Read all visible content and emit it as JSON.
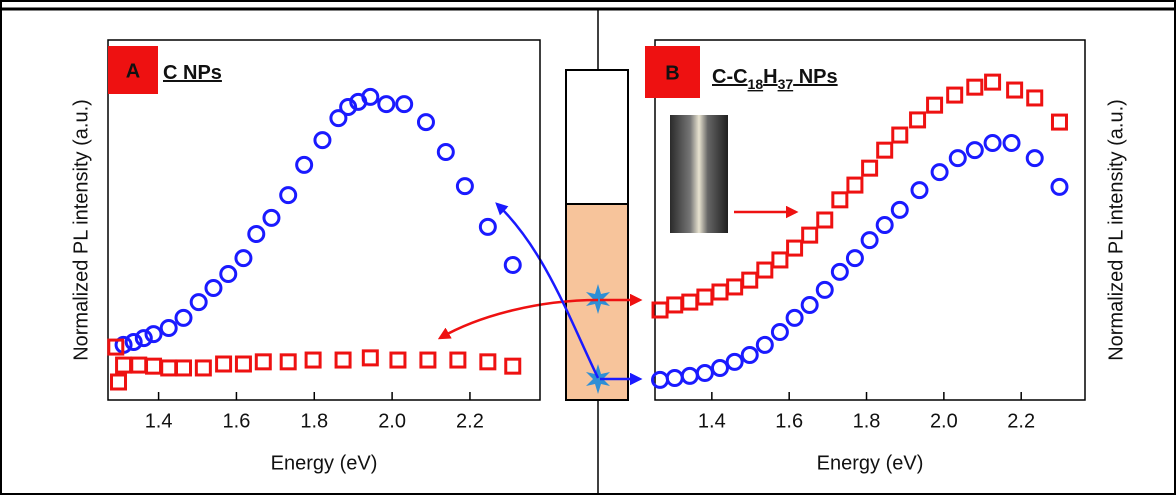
{
  "chart_data": [
    {
      "type": "scatter",
      "panel_label": "A",
      "title": "C NPs",
      "x_label": "Energy (eV)",
      "y_label": "Normalized PL intensity (a.u.)",
      "xlim": [
        1.27,
        2.38
      ],
      "ylim": [
        0,
        1
      ],
      "xticks": [
        1.4,
        1.6,
        1.8,
        {
          "value": 2,
          "label": "2.0"
        },
        2.2
      ],
      "series": [
        {
          "marker": "circle",
          "color": "#1a1aff",
          "x": [
            1.31,
            1.336,
            1.362,
            1.387,
            1.426,
            1.464,
            1.503,
            1.541,
            1.579,
            1.618,
            1.651,
            1.69,
            1.733,
            1.774,
            1.821,
            1.862,
            1.887,
            1.913,
            1.944,
            1.985,
            2.031,
            2.087,
            2.138,
            2.187,
            2.246,
            2.31
          ],
          "values": [
            0.153,
            0.161,
            0.172,
            0.183,
            0.2,
            0.228,
            0.272,
            0.311,
            0.35,
            0.394,
            0.461,
            0.506,
            0.569,
            0.653,
            0.722,
            0.783,
            0.814,
            0.828,
            0.842,
            0.822,
            0.822,
            0.772,
            0.689,
            0.594,
            0.481,
            0.375
          ]
        },
        {
          "marker": "square",
          "color": "#ee1111",
          "x": [
            1.29,
            1.297,
            1.31,
            1.349,
            1.387,
            1.426,
            1.464,
            1.515,
            1.567,
            1.618,
            1.669,
            1.733,
            1.797,
            1.874,
            1.944,
            2.015,
            2.092,
            2.169,
            2.246,
            2.31
          ],
          "values": [
            0.147,
            0.05,
            0.097,
            0.097,
            0.094,
            0.089,
            0.089,
            0.089,
            0.1,
            0.1,
            0.106,
            0.106,
            0.111,
            0.111,
            0.117,
            0.111,
            0.111,
            0.111,
            0.106,
            0.094
          ]
        }
      ]
    },
    {
      "type": "scatter",
      "panel_label": "B",
      "title": "C-C18H37 NPs",
      "x_label": "Energy (eV)",
      "y_label": "Normalized PL intensity (a.u.)",
      "xlim": [
        1.253,
        2.365
      ],
      "ylim": [
        0,
        1
      ],
      "xticks": [
        1.4,
        1.6,
        1.8,
        {
          "value": 2,
          "label": "2.0"
        },
        2.2
      ],
      "series": [
        {
          "marker": "circle",
          "color": "#1a1aff",
          "x": [
            1.266,
            1.304,
            1.343,
            1.382,
            1.421,
            1.459,
            1.498,
            1.537,
            1.576,
            1.614,
            1.653,
            1.692,
            1.731,
            1.77,
            1.808,
            1.847,
            1.886,
            1.937,
            1.989,
            2.036,
            2.08,
            2.126,
            2.175,
            2.235,
            2.299
          ],
          "values": [
            0.056,
            0.061,
            0.067,
            0.075,
            0.089,
            0.106,
            0.125,
            0.153,
            0.189,
            0.228,
            0.264,
            0.306,
            0.356,
            0.394,
            0.444,
            0.486,
            0.528,
            0.583,
            0.633,
            0.672,
            0.694,
            0.714,
            0.714,
            0.672,
            0.592
          ]
        },
        {
          "marker": "square",
          "color": "#ee1111",
          "x": [
            1.266,
            1.304,
            1.343,
            1.382,
            1.421,
            1.459,
            1.498,
            1.537,
            1.576,
            1.614,
            1.653,
            1.692,
            1.731,
            1.77,
            1.808,
            1.847,
            1.886,
            1.932,
            1.976,
            2.028,
            2.08,
            2.126,
            2.183,
            2.235,
            2.299
          ],
          "values": [
            0.25,
            0.264,
            0.272,
            0.286,
            0.3,
            0.314,
            0.333,
            0.361,
            0.389,
            0.422,
            0.458,
            0.5,
            0.556,
            0.597,
            0.644,
            0.694,
            0.736,
            0.778,
            0.819,
            0.847,
            0.869,
            0.883,
            0.861,
            0.839,
            0.772
          ]
        }
      ]
    }
  ]
}
